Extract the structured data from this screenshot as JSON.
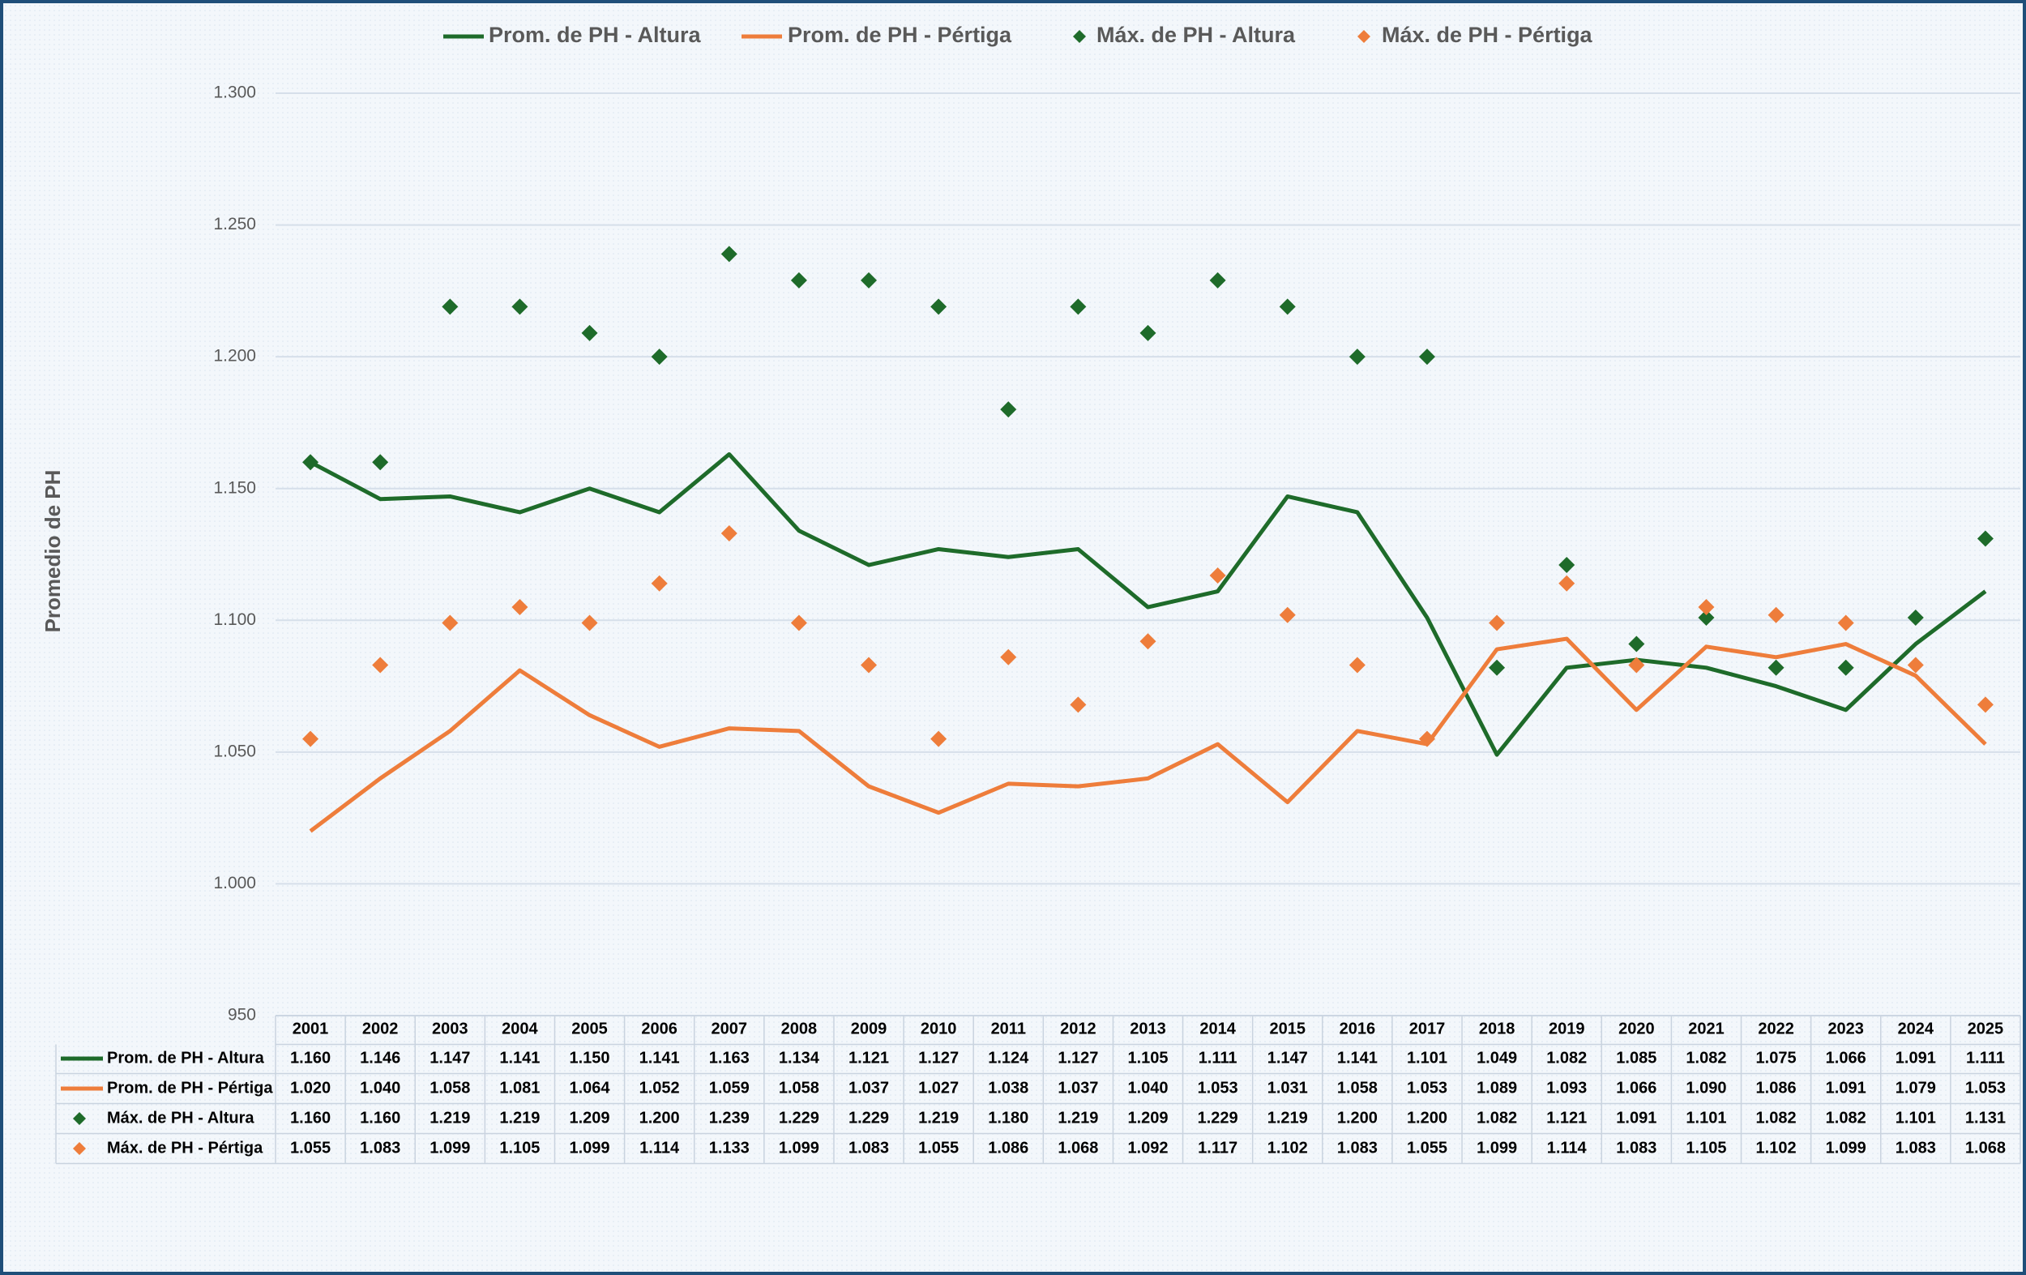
{
  "chart_data": {
    "type": "line",
    "y_axis_label": "Promedio de PH",
    "categories": [
      "2001",
      "2002",
      "2003",
      "2004",
      "2005",
      "2006",
      "2007",
      "2008",
      "2009",
      "2010",
      "2011",
      "2012",
      "2013",
      "2014",
      "2015",
      "2016",
      "2017",
      "2018",
      "2019",
      "2020",
      "2021",
      "2022",
      "2023",
      "2024",
      "2025"
    ],
    "ylim": [
      950,
      1300
    ],
    "yticks": [
      950,
      {
        "value": 1000,
        "label": "1.000"
      },
      {
        "value": 1050,
        "label": "1.050"
      },
      {
        "value": 1100,
        "label": "1.100"
      },
      {
        "value": 1150,
        "label": "1.150"
      },
      {
        "value": 1200,
        "label": "1.200"
      },
      {
        "value": 1250,
        "label": "1.250"
      },
      {
        "value": 1300,
        "label": "1.300"
      }
    ],
    "grid": true,
    "legend": "top",
    "series": [
      {
        "name": "Prom. de PH - Altura",
        "type": "line",
        "color": "#1e6b2a",
        "values": [
          1160,
          1146,
          1147,
          1141,
          1150,
          1141,
          1163,
          1134,
          1121,
          1127,
          1124,
          1127,
          1105,
          1111,
          1147,
          1141,
          1101,
          1049,
          1082,
          1085,
          1082,
          1075,
          1066,
          1091,
          1111
        ],
        "value_labels": [
          "1.160",
          "1.146",
          "1.147",
          "1.141",
          "1.150",
          "1.141",
          "1.163",
          "1.134",
          "1.121",
          "1.127",
          "1.124",
          "1.127",
          "1.105",
          "1.111",
          "1.147",
          "1.141",
          "1.101",
          "1.049",
          "1.082",
          "1.085",
          "1.082",
          "1.075",
          "1.066",
          "1.091",
          "1.111"
        ]
      },
      {
        "name": "Prom. de PH - Pértiga",
        "type": "line",
        "color": "#ee7d3b",
        "values": [
          1020,
          1040,
          1058,
          1081,
          1064,
          1052,
          1059,
          1058,
          1037,
          1027,
          1038,
          1037,
          1040,
          1053,
          1031,
          1058,
          1053,
          1089,
          1093,
          1066,
          1090,
          1086,
          1091,
          1079,
          1053
        ],
        "value_labels": [
          "1.020",
          "1.040",
          "1.058",
          "1.081",
          "1.064",
          "1.052",
          "1.059",
          "1.058",
          "1.037",
          "1.027",
          "1.038",
          "1.037",
          "1.040",
          "1.053",
          "1.031",
          "1.058",
          "1.053",
          "1.089",
          "1.093",
          "1.066",
          "1.090",
          "1.086",
          "1.091",
          "1.079",
          "1.053"
        ]
      },
      {
        "name": "Máx. de PH - Altura",
        "type": "scatter",
        "color": "#1e6b2a",
        "values": [
          1160,
          1160,
          1219,
          1219,
          1209,
          1200,
          1239,
          1229,
          1229,
          1219,
          1180,
          1219,
          1209,
          1229,
          1219,
          1200,
          1200,
          1082,
          1121,
          1091,
          1101,
          1082,
          1082,
          1101,
          1131
        ],
        "value_labels": [
          "1.160",
          "1.160",
          "1.219",
          "1.219",
          "1.209",
          "1.200",
          "1.239",
          "1.229",
          "1.229",
          "1.219",
          "1.180",
          "1.219",
          "1.209",
          "1.229",
          "1.219",
          "1.200",
          "1.200",
          "1.082",
          "1.121",
          "1.091",
          "1.101",
          "1.082",
          "1.082",
          "1.101",
          "1.131"
        ]
      },
      {
        "name": "Máx. de PH - Pértiga",
        "type": "scatter",
        "color": "#ee7d3b",
        "values": [
          1055,
          1083,
          1099,
          1105,
          1099,
          1114,
          1133,
          1099,
          1083,
          1055,
          1086,
          1068,
          1092,
          1117,
          1102,
          1083,
          1055,
          1099,
          1114,
          1083,
          1105,
          1102,
          1099,
          1083,
          1068
        ],
        "value_labels": [
          "1.055",
          "1.083",
          "1.099",
          "1.105",
          "1.099",
          "1.114",
          "1.133",
          "1.099",
          "1.083",
          "1.055",
          "1.086",
          "1.068",
          "1.092",
          "1.117",
          "1.102",
          "1.083",
          "1.055",
          "1.099",
          "1.114",
          "1.083",
          "1.105",
          "1.102",
          "1.099",
          "1.083",
          "1.068"
        ]
      }
    ]
  }
}
